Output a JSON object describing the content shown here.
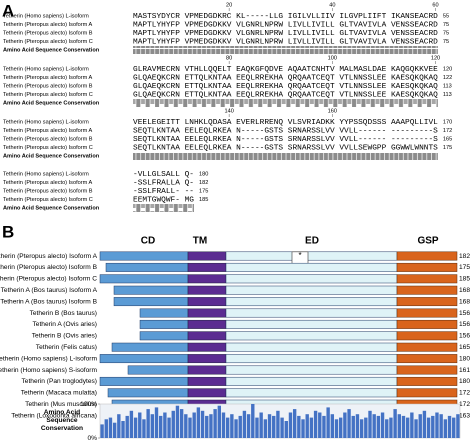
{
  "panel_a": {
    "label": "A",
    "conservation_label": "Amino Acid Sequence Conservation",
    "blocks": [
      {
        "ruler": [
          20,
          40,
          60
        ],
        "rows": [
          {
            "name": "Tetherin (Homo sapiens) L-isoform",
            "seq": "MASTSYDYCR VPMEDGDKRC KL-----LLG IGILVLLIIV ILGVPLIIFT IKANSEACRD",
            "end": 55
          },
          {
            "name": "Tetherin (Pteropus alecto) Isoform A",
            "seq": "MAPTLYHYFP VPMEDGDKKV VLGNRLNPRW LIVLLIVILL GLTVAVIVLA VENSSEACRD",
            "end": 75
          },
          {
            "name": "Tetherin (Pteropus alecto) Isoform B",
            "seq": "MAPTLYHYFP VPMEDGDKKV VLGNRLNPRW LIVLLIVILL GLTVAVIVLA VENSSEACRD",
            "end": 75
          },
          {
            "name": "Tetherin (Pteropus alecto) Isoform C",
            "seq": "MAPTLYHYFP VPMEDGDKKV VLGNRLNPRW LIVLLIVILL GLTVAVIVLA VENSSEACRD",
            "end": 75
          }
        ]
      },
      {
        "ruler": [
          80,
          100,
          120
        ],
        "rows": [
          {
            "name": "Tetherin (Homo sapiens) L-isoform",
            "seq": "GLRAVMECRN VTHLLQQELT EAQKGFQDVE AQAATCNHTV MALMASLDAE KAQGQKKVEE",
            "end": 120
          },
          {
            "name": "Tetherin (Pteropus alecto) Isoform A",
            "seq": "GLQAEQKCRN ETTQLKNTAA EEQLRREKHA QRQAATCEQT VTLNNSSLEE KAESQKQKAQ",
            "end": 122
          },
          {
            "name": "Tetherin (Pteropus alecto) Isoform B",
            "seq": "GLQAEQKCRN ETTQLKNTAA EEQLRREKHA QRQAATCEQT VTLNNSSLEE KAESQKQKAQ",
            "end": 113
          },
          {
            "name": "Tetherin (Pteropus alecto) Isoform C",
            "seq": "GLQAEQKCRN ETTQLKNTAA EEQLRREKHA QRQAATCEQT VTLNNSSLEE KAESQKQKAQ",
            "end": 113
          }
        ]
      },
      {
        "ruler": [
          140,
          160
        ],
        "rows": [
          {
            "name": "Tetherin (Homo sapiens) L-isoform",
            "seq": "VEELEGEITT LNHKLQDASA EVERLRRENQ VLSVRIADKK YYPSSQDSSS AAAPQLLIVL",
            "end": 170
          },
          {
            "name": "Tetherin (Pteropus alecto) Isoform A",
            "seq": "SEQTLKNTAA EELEQLRKEA N-----GSTS SRNARSSLVV VVLL------ ---------S",
            "end": 172
          },
          {
            "name": "Tetherin (Pteropus alecto) Isoform B",
            "seq": "SEQTLKNTAA EELEQLRKEA N-----GSTS SRNARSSLVV VVLL------ ---------S",
            "end": 165
          },
          {
            "name": "Tetherin (Pteropus alecto) Isoform C",
            "seq": "SEQTLKNTAA EELEQLRKEA N-----GSTS SRNARSSLVV VVLLSEWGPP GGWWLWNNTS",
            "end": 175
          }
        ]
      },
      {
        "ruler": [],
        "rows": [
          {
            "name": "Tetherin (Homo sapiens) L-isoform",
            "seq": "-VLLGLSALL Q-",
            "end": 180
          },
          {
            "name": "Tetherin (Pteropus alecto) Isoform A",
            "seq": "-SSLFRALLA Q-",
            "end": 182
          },
          {
            "name": "Tetherin (Pteropus alecto) Isoform B",
            "seq": "-SSLFRALL- --",
            "end": 175
          },
          {
            "name": "Tetherin (Pteropus alecto) Isoform C",
            "seq": "EEMTGWQWF- MG",
            "end": 185
          }
        ]
      }
    ]
  },
  "panel_b": {
    "label": "B",
    "domains": [
      "CD",
      "TM",
      "ED",
      "GSP"
    ],
    "insertion_mark": "*",
    "rows": [
      {
        "name": "Tetherin (Pteropus alecto) Isoform A",
        "length": 182
      },
      {
        "name": "Tetherin (Pteropus alecto) Isoform B",
        "length": 175
      },
      {
        "name": "Tetherin (Pteropus alecto) Isoform C",
        "length": 185
      },
      {
        "name": "Tetherin A (Bos taurus) Isoform A",
        "length": 168
      },
      {
        "name": "Tetherin A (Bos taurus) Isoform B",
        "length": 168
      },
      {
        "name": "Tetherin B (Bos taurus)",
        "length": 156
      },
      {
        "name": "Tetherin A (Ovis aries)",
        "length": 156
      },
      {
        "name": "Tetherin B (Ovis aries)",
        "length": 156
      },
      {
        "name": "Tetherin (Felis catus)",
        "length": 165
      },
      {
        "name": "Tetherin (Homo sapiens) L-isoform",
        "length": 180
      },
      {
        "name": "Tetherin (Homo sapiens) S-isoform",
        "length": 161
      },
      {
        "name": "Tetherin (Pan troglodytes)",
        "length": 180
      },
      {
        "name": "Tetherin (Macaca mulatta)",
        "length": 172
      },
      {
        "name": "Tetherin (Mus musculus)",
        "length": 172
      },
      {
        "name": "Tetherin (Loxodonta africana)",
        "length": 163
      }
    ],
    "conservation": {
      "label": [
        "Amino Acid",
        "Sequence",
        "Conservation"
      ],
      "ylim": [
        0,
        100
      ],
      "yticks": [
        {
          "value": 100,
          "label": "100%"
        },
        {
          "value": 0,
          "label": "0%"
        }
      ],
      "values": [
        40,
        55,
        60,
        45,
        70,
        50,
        65,
        80,
        60,
        75,
        55,
        85,
        70,
        90,
        65,
        75,
        60,
        80,
        95,
        85,
        70,
        60,
        75,
        90,
        80,
        65,
        70,
        85,
        95,
        75,
        60,
        70,
        55,
        65,
        80,
        70,
        100,
        60,
        75,
        55,
        70,
        65,
        80,
        60,
        50,
        75,
        85,
        65,
        55,
        70,
        60,
        80,
        75,
        65,
        90,
        70,
        55,
        60,
        75,
        85,
        65,
        70,
        55,
        60,
        80,
        70,
        65,
        75,
        55,
        60,
        85,
        70,
        65,
        60,
        75,
        55,
        70,
        80,
        60,
        65,
        75,
        70,
        55,
        65,
        60,
        70
      ]
    }
  }
}
